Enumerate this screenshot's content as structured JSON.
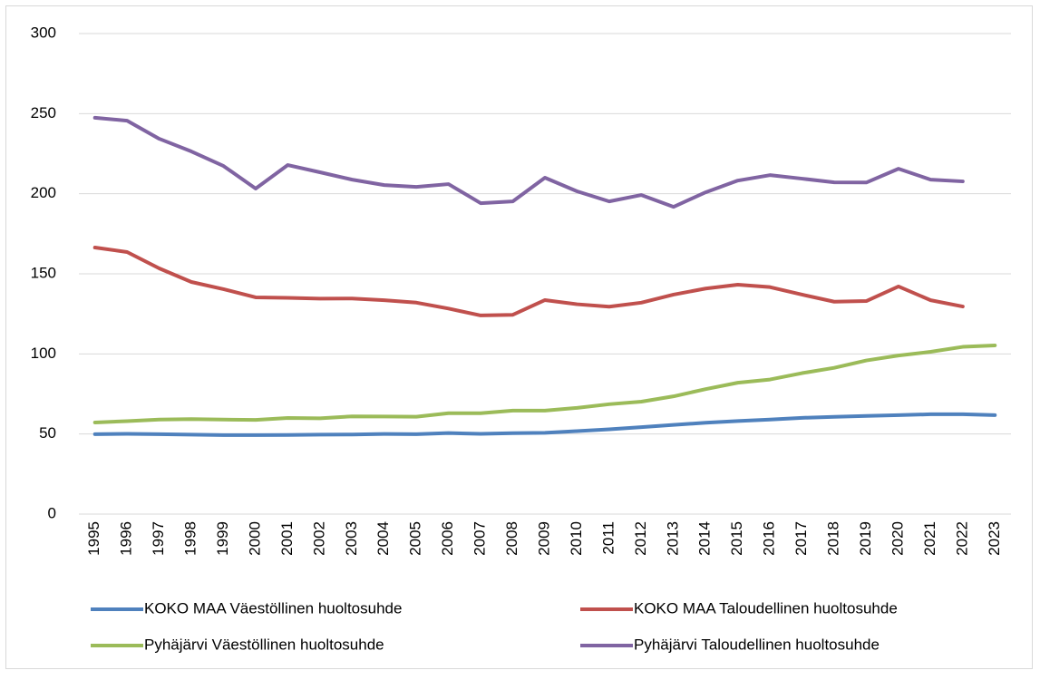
{
  "chart_data": {
    "type": "line",
    "categories": [
      "1995",
      "1996",
      "1997",
      "1998",
      "1999",
      "2000",
      "2001",
      "2002",
      "2003",
      "2004",
      "2005",
      "2006",
      "2007",
      "2008",
      "2009",
      "2010",
      "2011",
      "2012",
      "2013",
      "2014",
      "2015",
      "2016",
      "2017",
      "2018",
      "2019",
      "2020",
      "2021",
      "2022",
      "2023"
    ],
    "series": [
      {
        "name": "KOKO MAA Väestöllinen huoltosuhde",
        "color": "#4f81bd",
        "values": [
          49.9,
          50.1,
          49.9,
          49.6,
          49.3,
          49.3,
          49.4,
          49.6,
          49.7,
          50.0,
          49.9,
          50.6,
          50.1,
          50.5,
          50.7,
          51.8,
          52.9,
          54.3,
          55.7,
          57.0,
          58.1,
          59.0,
          60.1,
          60.7,
          61.3,
          61.8,
          62.3,
          62.3,
          61.8
        ]
      },
      {
        "name": "KOKO MAA Taloudellinen huoltosuhde",
        "color": "#c0504d",
        "values": [
          166.4,
          163.6,
          153.4,
          144.9,
          140.4,
          135.3,
          135.0,
          134.5,
          134.6,
          133.5,
          132.0,
          128.3,
          124.0,
          124.4,
          133.6,
          131.0,
          129.5,
          132.0,
          137.0,
          140.8,
          143.2,
          141.7,
          137.0,
          132.6,
          133.0,
          142.1,
          133.5,
          129.6,
          null
        ]
      },
      {
        "name": "Pyhäjärvi Väestöllinen huoltosuhde",
        "color": "#9bbb59",
        "values": [
          57.2,
          58.0,
          59.0,
          59.3,
          59.0,
          58.8,
          60.0,
          59.8,
          61.0,
          60.9,
          60.8,
          63.0,
          63.0,
          64.6,
          64.6,
          66.3,
          68.6,
          70.2,
          73.5,
          78.0,
          82.0,
          84.0,
          88.0,
          91.3,
          95.9,
          99.0,
          101.3,
          104.4,
          105.3
        ]
      },
      {
        "name": "Pyhäjärvi Taloudellinen huoltosuhde",
        "color": "#8064a2",
        "values": [
          247.4,
          245.6,
          234.3,
          226.4,
          217.3,
          203.2,
          217.9,
          213.4,
          208.8,
          205.4,
          204.3,
          206.0,
          194.1,
          195.2,
          210.0,
          201.5,
          195.2,
          199.2,
          191.8,
          200.9,
          208.2,
          211.6,
          209.4,
          207.1,
          207.0,
          215.6,
          208.8,
          207.7,
          null
        ]
      }
    ],
    "ylim": [
      0,
      300
    ],
    "yticks": [
      0,
      50,
      100,
      150,
      200,
      250,
      300
    ],
    "grid": true
  }
}
